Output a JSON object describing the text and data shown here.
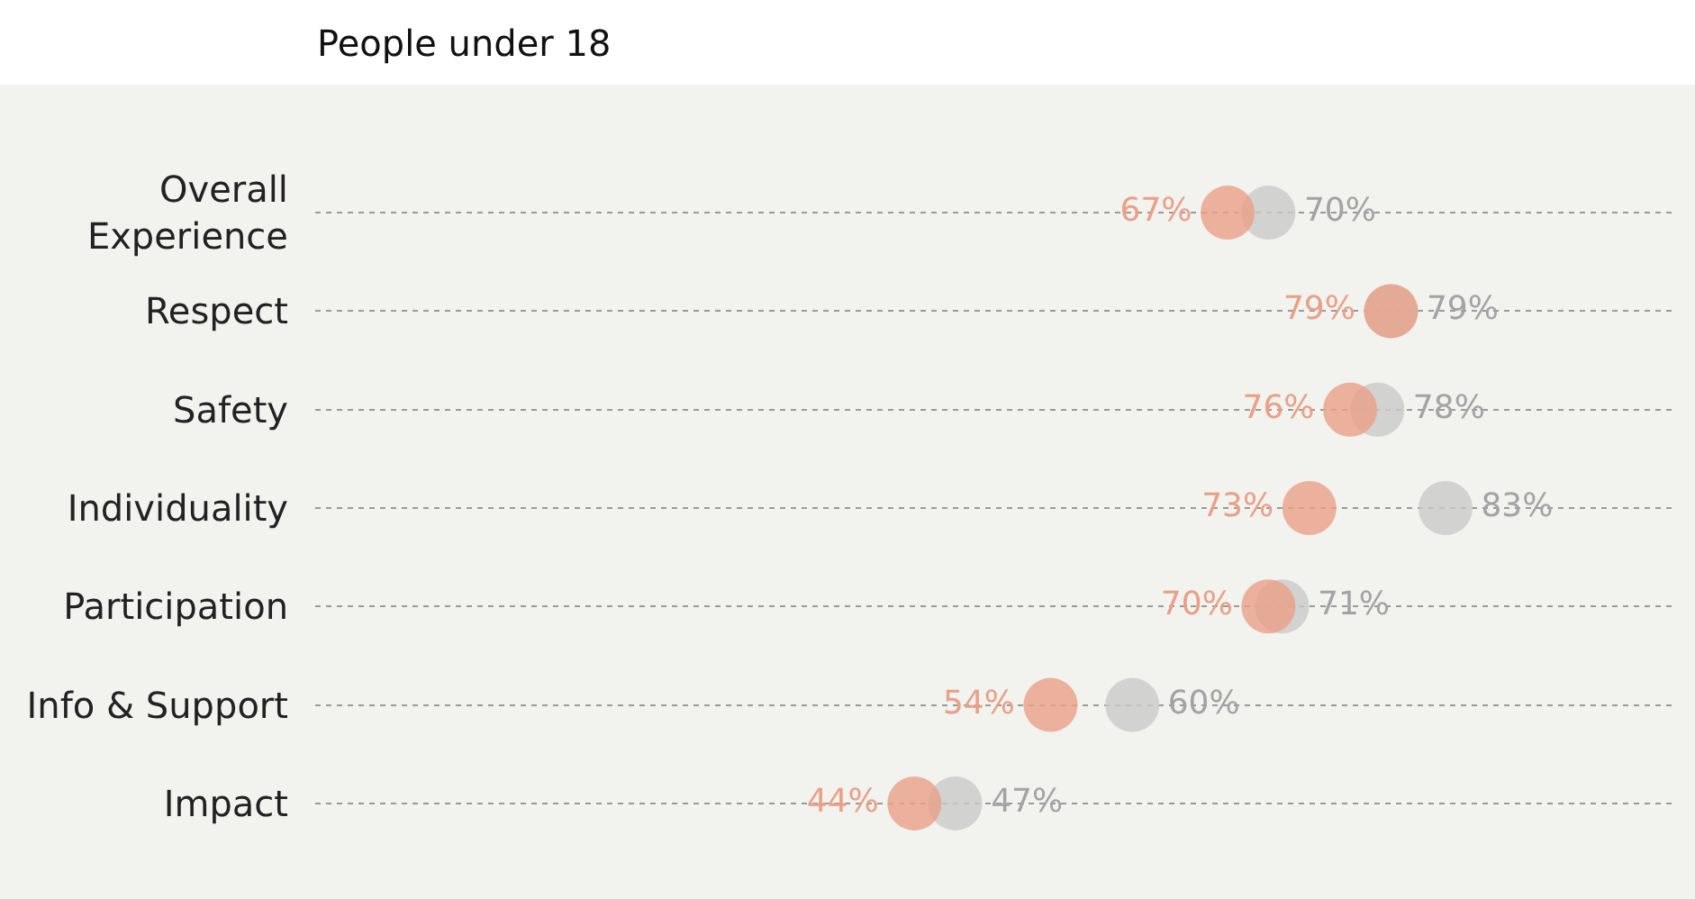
{
  "chart_data": {
    "type": "scatter",
    "orientation": "horizontal",
    "title": "People under 18",
    "categories": [
      "Overall Experience",
      "Respect",
      "Safety",
      "Individuality",
      "Participation",
      "Info & Support",
      "Impact"
    ],
    "series": [
      {
        "color": "#c9c9c9",
        "values": [
          70,
          79,
          78,
          83,
          71,
          60,
          47
        ],
        "value_labels": [
          "70%",
          "79%",
          "78%",
          "83%",
          "71%",
          "60%",
          "47%"
        ]
      },
      {
        "color": "#e9a087",
        "values": [
          67,
          79,
          76,
          73,
          70,
          54,
          44
        ],
        "value_labels": [
          "67%",
          "79%",
          "76%",
          "73%",
          "70%",
          "54%",
          "44%"
        ]
      }
    ],
    "xlim": [
      0,
      100
    ],
    "tick_labels": "y",
    "grid": "y",
    "marker": "circle"
  }
}
